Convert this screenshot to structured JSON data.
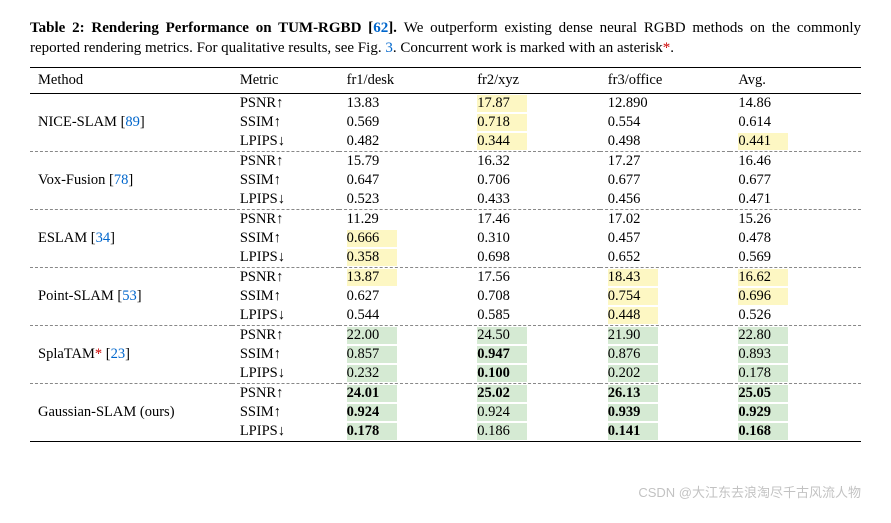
{
  "caption": {
    "title_prefix": "Table 2: Rendering Performance on TUM-RGBD [",
    "title_ref": "62",
    "title_suffix": "].",
    "body_1": " We outperform existing dense neural RGBD methods on the commonly reported rendering metrics. For qualitative results, see Fig. ",
    "fig_ref": "3",
    "body_2": ". Concurrent work is marked with an asterisk",
    "asterisk": "*",
    "body_3": "."
  },
  "columns": [
    "Method",
    "Metric",
    "fr1/desk",
    "fr2/xyz",
    "fr3/office",
    "Avg."
  ],
  "metrics": [
    "PSNR↑",
    "SSIM↑",
    "LPIPS↓"
  ],
  "methods": [
    {
      "name": "NICE-SLAM",
      "ref": "89",
      "asterisk": false,
      "suffix": ""
    },
    {
      "name": "Vox-Fusion",
      "ref": "78",
      "asterisk": false,
      "suffix": ""
    },
    {
      "name": "ESLAM",
      "ref": "34",
      "asterisk": false,
      "suffix": ""
    },
    {
      "name": "Point-SLAM",
      "ref": "53",
      "asterisk": false,
      "suffix": ""
    },
    {
      "name": "SplaTAM",
      "ref": "23",
      "asterisk": true,
      "suffix": ""
    },
    {
      "name": "Gaussian-SLAM (ours)",
      "ref": null,
      "asterisk": false,
      "suffix": ""
    }
  ],
  "data": [
    [
      [
        {
          "v": "13.83",
          "hl": null,
          "b": false
        },
        {
          "v": "17.87",
          "hl": "yellow",
          "b": false
        },
        {
          "v": "12.890",
          "hl": null,
          "b": false
        },
        {
          "v": "14.86",
          "hl": null,
          "b": false
        }
      ],
      [
        {
          "v": "0.569",
          "hl": null,
          "b": false
        },
        {
          "v": "0.718",
          "hl": "yellow",
          "b": false
        },
        {
          "v": "0.554",
          "hl": null,
          "b": false
        },
        {
          "v": "0.614",
          "hl": null,
          "b": false
        }
      ],
      [
        {
          "v": "0.482",
          "hl": null,
          "b": false
        },
        {
          "v": "0.344",
          "hl": "yellow",
          "b": false
        },
        {
          "v": "0.498",
          "hl": null,
          "b": false
        },
        {
          "v": "0.441",
          "hl": "yellow",
          "b": false
        }
      ]
    ],
    [
      [
        {
          "v": "15.79",
          "hl": null,
          "b": false
        },
        {
          "v": "16.32",
          "hl": null,
          "b": false
        },
        {
          "v": "17.27",
          "hl": null,
          "b": false
        },
        {
          "v": "16.46",
          "hl": null,
          "b": false
        }
      ],
      [
        {
          "v": "0.647",
          "hl": null,
          "b": false
        },
        {
          "v": "0.706",
          "hl": null,
          "b": false
        },
        {
          "v": "0.677",
          "hl": null,
          "b": false
        },
        {
          "v": "0.677",
          "hl": null,
          "b": false
        }
      ],
      [
        {
          "v": "0.523",
          "hl": null,
          "b": false
        },
        {
          "v": "0.433",
          "hl": null,
          "b": false
        },
        {
          "v": "0.456",
          "hl": null,
          "b": false
        },
        {
          "v": "0.471",
          "hl": null,
          "b": false
        }
      ]
    ],
    [
      [
        {
          "v": "11.29",
          "hl": null,
          "b": false
        },
        {
          "v": "17.46",
          "hl": null,
          "b": false
        },
        {
          "v": "17.02",
          "hl": null,
          "b": false
        },
        {
          "v": "15.26",
          "hl": null,
          "b": false
        }
      ],
      [
        {
          "v": "0.666",
          "hl": "yellow",
          "b": false
        },
        {
          "v": "0.310",
          "hl": null,
          "b": false
        },
        {
          "v": "0.457",
          "hl": null,
          "b": false
        },
        {
          "v": "0.478",
          "hl": null,
          "b": false
        }
      ],
      [
        {
          "v": "0.358",
          "hl": "yellow",
          "b": false
        },
        {
          "v": "0.698",
          "hl": null,
          "b": false
        },
        {
          "v": "0.652",
          "hl": null,
          "b": false
        },
        {
          "v": "0.569",
          "hl": null,
          "b": false
        }
      ]
    ],
    [
      [
        {
          "v": "13.87",
          "hl": "yellow",
          "b": false
        },
        {
          "v": "17.56",
          "hl": null,
          "b": false
        },
        {
          "v": "18.43",
          "hl": "yellow",
          "b": false
        },
        {
          "v": "16.62",
          "hl": "yellow",
          "b": false
        }
      ],
      [
        {
          "v": "0.627",
          "hl": null,
          "b": false
        },
        {
          "v": "0.708",
          "hl": null,
          "b": false
        },
        {
          "v": "0.754",
          "hl": "yellow",
          "b": false
        },
        {
          "v": "0.696",
          "hl": "yellow",
          "b": false
        }
      ],
      [
        {
          "v": "0.544",
          "hl": null,
          "b": false
        },
        {
          "v": "0.585",
          "hl": null,
          "b": false
        },
        {
          "v": "0.448",
          "hl": "yellow",
          "b": false
        },
        {
          "v": "0.526",
          "hl": null,
          "b": false
        }
      ]
    ],
    [
      [
        {
          "v": "22.00",
          "hl": "green",
          "b": false
        },
        {
          "v": "24.50",
          "hl": "green",
          "b": false
        },
        {
          "v": "21.90",
          "hl": "green",
          "b": false
        },
        {
          "v": "22.80",
          "hl": "green",
          "b": false
        }
      ],
      [
        {
          "v": "0.857",
          "hl": "green",
          "b": false
        },
        {
          "v": "0.947",
          "hl": "green",
          "b": true
        },
        {
          "v": "0.876",
          "hl": "green",
          "b": false
        },
        {
          "v": "0.893",
          "hl": "green",
          "b": false
        }
      ],
      [
        {
          "v": "0.232",
          "hl": "green",
          "b": false
        },
        {
          "v": "0.100",
          "hl": "green",
          "b": true
        },
        {
          "v": "0.202",
          "hl": "green",
          "b": false
        },
        {
          "v": "0.178",
          "hl": "green",
          "b": false
        }
      ]
    ],
    [
      [
        {
          "v": "24.01",
          "hl": "green",
          "b": true
        },
        {
          "v": "25.02",
          "hl": "green",
          "b": true
        },
        {
          "v": "26.13",
          "hl": "green",
          "b": true
        },
        {
          "v": "25.05",
          "hl": "green",
          "b": true
        }
      ],
      [
        {
          "v": "0.924",
          "hl": "green",
          "b": true
        },
        {
          "v": "0.924",
          "hl": "green",
          "b": false
        },
        {
          "v": "0.939",
          "hl": "green",
          "b": true
        },
        {
          "v": "0.929",
          "hl": "green",
          "b": true
        }
      ],
      [
        {
          "v": "0.178",
          "hl": "green",
          "b": true
        },
        {
          "v": "0.186",
          "hl": "green",
          "b": false
        },
        {
          "v": "0.141",
          "hl": "green",
          "b": true
        },
        {
          "v": "0.168",
          "hl": "green",
          "b": true
        }
      ]
    ]
  ],
  "watermark": "CSDN @大江东去浪淘尽千古风流人物",
  "colors": {
    "link": "#0066cc",
    "asterisk": "#cc0000",
    "hl_yellow": "#fdf7c3",
    "hl_green": "#d5ead3"
  }
}
